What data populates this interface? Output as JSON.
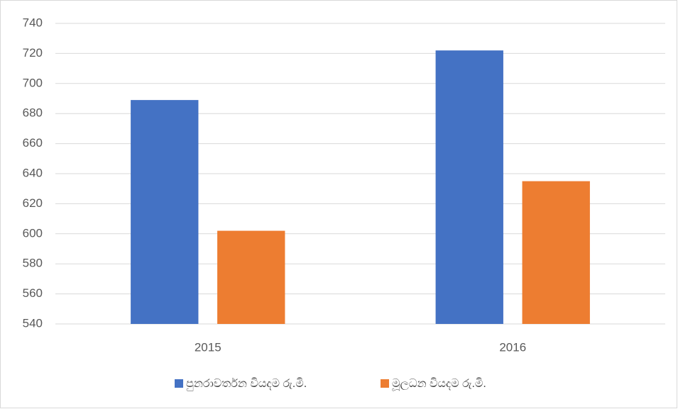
{
  "chart_data": {
    "type": "bar",
    "categories": [
      "2015",
      "2016"
    ],
    "series": [
      {
        "name": "පුනරාවර්තන වියදම රු.මි.",
        "color": "#4472c4",
        "values": [
          689,
          722
        ]
      },
      {
        "name": "මූලධන වියදම රු.මි.",
        "color": "#ed7d31",
        "values": [
          602,
          635
        ]
      }
    ],
    "ylim": [
      540,
      740
    ],
    "yticks": [
      540,
      560,
      580,
      600,
      620,
      640,
      660,
      680,
      700,
      720,
      740
    ],
    "grid": true,
    "legend": "bottom"
  }
}
